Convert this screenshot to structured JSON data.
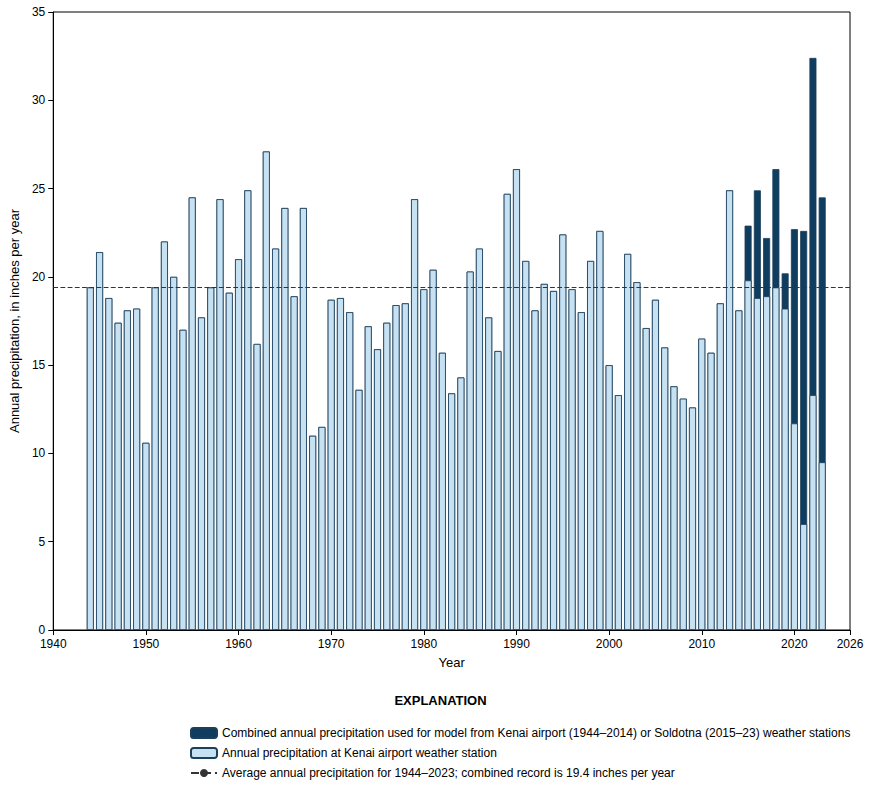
{
  "chart_data": {
    "type": "bar",
    "x_label": "Year",
    "y_label": "Annual precipitation, in inches per year",
    "legend_title": "EXPLANATION",
    "legend": "bottom",
    "grid": false,
    "xlim": [
      1940,
      2026
    ],
    "xticks": [
      1940,
      1950,
      1960,
      1970,
      1980,
      1990,
      2000,
      2010,
      2020
    ],
    "ylim": [
      0,
      35
    ],
    "yticks": [
      0,
      5,
      10,
      15,
      20,
      25,
      30,
      35
    ],
    "x": [
      1944,
      1945,
      1946,
      1947,
      1948,
      1949,
      1950,
      1951,
      1952,
      1953,
      1954,
      1955,
      1956,
      1957,
      1958,
      1959,
      1960,
      1961,
      1962,
      1963,
      1964,
      1965,
      1966,
      1967,
      1968,
      1969,
      1970,
      1971,
      1972,
      1973,
      1974,
      1975,
      1976,
      1977,
      1978,
      1979,
      1980,
      1981,
      1982,
      1983,
      1984,
      1985,
      1986,
      1987,
      1988,
      1989,
      1990,
      1991,
      1992,
      1993,
      1994,
      1995,
      1996,
      1997,
      1998,
      1999,
      2000,
      2001,
      2002,
      2003,
      2004,
      2005,
      2006,
      2007,
      2008,
      2009,
      2010,
      2011,
      2012,
      2013,
      2014,
      2015,
      2016,
      2017,
      2018,
      2019,
      2020,
      2021,
      2022,
      2023
    ],
    "series": [
      {
        "name": "Combined annual precipitation used for model from Kenai airport (1944–2014) or Soldotna (2015–23) weather stations",
        "color": "#0f3d5f",
        "values": [
          19.4,
          21.4,
          18.8,
          17.4,
          18.1,
          18.2,
          10.6,
          19.4,
          22.0,
          20.0,
          17.0,
          24.5,
          17.7,
          19.4,
          24.4,
          19.1,
          21.0,
          24.9,
          16.2,
          27.1,
          21.6,
          23.9,
          18.9,
          23.9,
          11.0,
          11.5,
          18.7,
          18.8,
          18.0,
          13.6,
          17.2,
          15.9,
          17.4,
          18.4,
          18.5,
          24.4,
          19.3,
          20.4,
          15.7,
          13.4,
          14.3,
          20.3,
          21.6,
          17.7,
          15.8,
          24.7,
          26.1,
          20.9,
          18.1,
          19.6,
          19.2,
          22.4,
          19.3,
          18.0,
          20.9,
          22.6,
          15.0,
          13.3,
          21.3,
          19.7,
          17.1,
          18.7,
          16.0,
          13.8,
          13.1,
          12.6,
          16.5,
          15.7,
          18.5,
          24.9,
          18.1,
          22.9,
          24.9,
          22.2,
          26.1,
          20.2,
          22.7,
          22.6,
          32.4,
          24.5
        ]
      },
      {
        "name": "Annual precipitation at Kenai airport weather station",
        "color": "#c5e1f2",
        "values": [
          19.4,
          21.4,
          18.8,
          17.4,
          18.1,
          18.2,
          10.6,
          19.4,
          22.0,
          20.0,
          17.0,
          24.5,
          17.7,
          19.4,
          24.4,
          19.1,
          21.0,
          24.9,
          16.2,
          27.1,
          21.6,
          23.9,
          18.9,
          23.9,
          11.0,
          11.5,
          18.7,
          18.8,
          18.0,
          13.6,
          17.2,
          15.9,
          17.4,
          18.4,
          18.5,
          24.4,
          19.3,
          20.4,
          15.7,
          13.4,
          14.3,
          20.3,
          21.6,
          17.7,
          15.8,
          24.7,
          26.1,
          20.9,
          18.1,
          19.6,
          19.2,
          22.4,
          19.3,
          18.0,
          20.9,
          22.6,
          15.0,
          13.3,
          21.3,
          19.7,
          17.1,
          18.7,
          16.0,
          13.8,
          13.1,
          12.6,
          16.5,
          15.7,
          18.5,
          24.9,
          18.1,
          19.8,
          18.8,
          18.9,
          19.4,
          18.2,
          11.7,
          6.0,
          13.3,
          9.5
        ]
      }
    ],
    "reference_line": {
      "name": "Average annual precipitation for 1944–2023; combined record is 19.4 inches per year",
      "value": 19.4,
      "color": "#333333",
      "line_style": "dashed"
    }
  }
}
